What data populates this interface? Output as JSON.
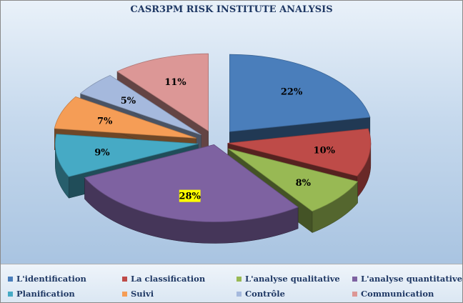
{
  "chart_data": {
    "type": "pie",
    "title": "CASR3PM RISK INSTITUTE ANALYSIS",
    "categories": [
      "L'identification",
      "La classification",
      "L'analyse qualitative",
      "L'analyse quantitative",
      "Planification",
      "Suivi",
      "Contrôle",
      "Communication"
    ],
    "values": [
      22,
      10,
      8,
      28,
      9,
      7,
      5,
      11
    ],
    "labels": [
      "22%",
      "10%",
      "8%",
      "28%",
      "9%",
      "7%",
      "5%",
      "11%"
    ],
    "colors": [
      "#4a7ebb",
      "#be4b48",
      "#98b954",
      "#7e62a1",
      "#46aac5",
      "#f59d56",
      "#a5b9dd",
      "#dc9796"
    ],
    "highlighted_label": "28%",
    "highlight_color": "#ffff00",
    "legend_position": "bottom",
    "exploded": true
  }
}
